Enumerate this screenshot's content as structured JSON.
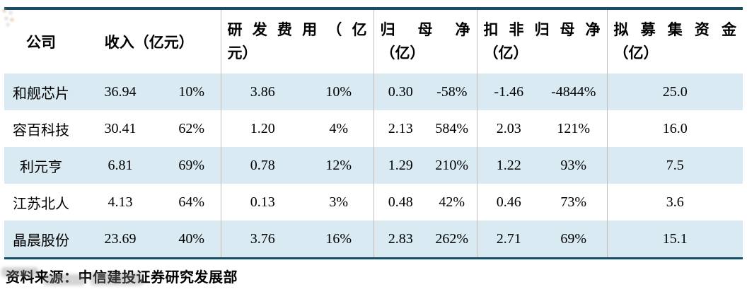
{
  "colors": {
    "border": "#1c4c60",
    "stripe": "#d9eaf2",
    "divider": "#bdbdbd"
  },
  "header": {
    "company": "公司",
    "revenue": "收入（亿元）",
    "rd": {
      "label": "研发费用（亿元）",
      "line1": "研发费用（亿",
      "line2": "元）"
    },
    "np": {
      "label": "归母净（亿）",
      "line1": "归母净",
      "line2": "（亿）"
    },
    "nonrec": {
      "label": "扣非归母净（亿）",
      "line1": "扣非归母净",
      "line2": "（亿）"
    },
    "raise": {
      "label": "拟募集资金（亿）",
      "line1": "拟募集资金",
      "line2": "（亿）"
    }
  },
  "rows": [
    {
      "company": "和舰芯片",
      "rev": "36.94",
      "rev_pct": "10%",
      "rd": "3.86",
      "rd_pct": "10%",
      "np": "0.30",
      "np_pct": "-58%",
      "nr": "-1.46",
      "nr_pct": "-4844%",
      "raise": "25.0"
    },
    {
      "company": "容百科技",
      "rev": "30.41",
      "rev_pct": "62%",
      "rd": "1.20",
      "rd_pct": "4%",
      "np": "2.13",
      "np_pct": "584%",
      "nr": "2.03",
      "nr_pct": "121%",
      "raise": "16.0"
    },
    {
      "company": "利元亨",
      "rev": "6.81",
      "rev_pct": "69%",
      "rd": "0.78",
      "rd_pct": "12%",
      "np": "1.29",
      "np_pct": "210%",
      "nr": "1.22",
      "nr_pct": "93%",
      "raise": "7.5"
    },
    {
      "company": "江苏北人",
      "rev": "4.13",
      "rev_pct": "64%",
      "rd": "0.13",
      "rd_pct": "3%",
      "np": "0.48",
      "np_pct": "42%",
      "nr": "0.46",
      "nr_pct": "73%",
      "raise": "3.6"
    },
    {
      "company": "晶晨股份",
      "rev": "23.69",
      "rev_pct": "40%",
      "rd": "3.76",
      "rd_pct": "16%",
      "np": "2.83",
      "np_pct": "262%",
      "nr": "2.71",
      "nr_pct": "69%",
      "raise": "15.1"
    }
  ],
  "footer": {
    "source": "资料来源：中信建投证券研究发展部"
  }
}
